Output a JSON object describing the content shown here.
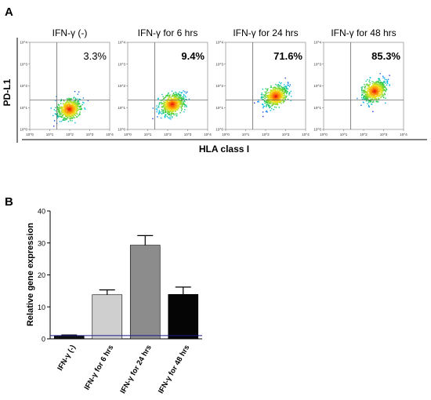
{
  "panels": {
    "a": {
      "letter": "A",
      "y_axis_label": "PD-L1",
      "x_axis_label": "HLA class I"
    },
    "b": {
      "letter": "B"
    }
  },
  "chart_data": [
    {
      "type": "scatter",
      "subtype": "flow-cytometry density plots",
      "xlabel": "HLA class I",
      "ylabel": "PD-L1",
      "xscale": "log",
      "yscale": "log",
      "xlim": [
        1,
        10000
      ],
      "ylim": [
        1,
        10000
      ],
      "tick_labels": [
        "10^0",
        "10^1",
        "10^2",
        "10^3",
        "10^4"
      ],
      "plots": [
        {
          "title": "IFN-γ (-)",
          "percent": "3.3%",
          "bold": false,
          "center": [
            90,
            9
          ]
        },
        {
          "title": "IFN-γ for 6 hrs",
          "percent": "9.4%",
          "bold": true,
          "center": [
            160,
            15
          ]
        },
        {
          "title": "IFN-γ for 24 hrs",
          "percent": "71.6%",
          "bold": true,
          "center": [
            300,
            35
          ]
        },
        {
          "title": "IFN-γ for 48 hrs",
          "percent": "85.3%",
          "bold": true,
          "center": [
            330,
            60
          ]
        }
      ]
    },
    {
      "type": "bar",
      "categories": [
        "IFN-γ (-)",
        "IFN-γ for 6 hrs",
        "IFN-γ for 24 hrs",
        "IFN-γ for 48 hrs"
      ],
      "values": [
        1.0,
        13.8,
        29.3,
        13.9
      ],
      "error": [
        0.2,
        1.5,
        3.0,
        2.3
      ],
      "colors": [
        "#111111",
        "#cfcfcf",
        "#8c8c8c",
        "#050505"
      ],
      "ylabel": "Relative gene expression",
      "xlabel": "",
      "ylim": [
        0,
        40
      ],
      "yticks": [
        0,
        10,
        20,
        30,
        40
      ],
      "reference_line": 1
    }
  ]
}
